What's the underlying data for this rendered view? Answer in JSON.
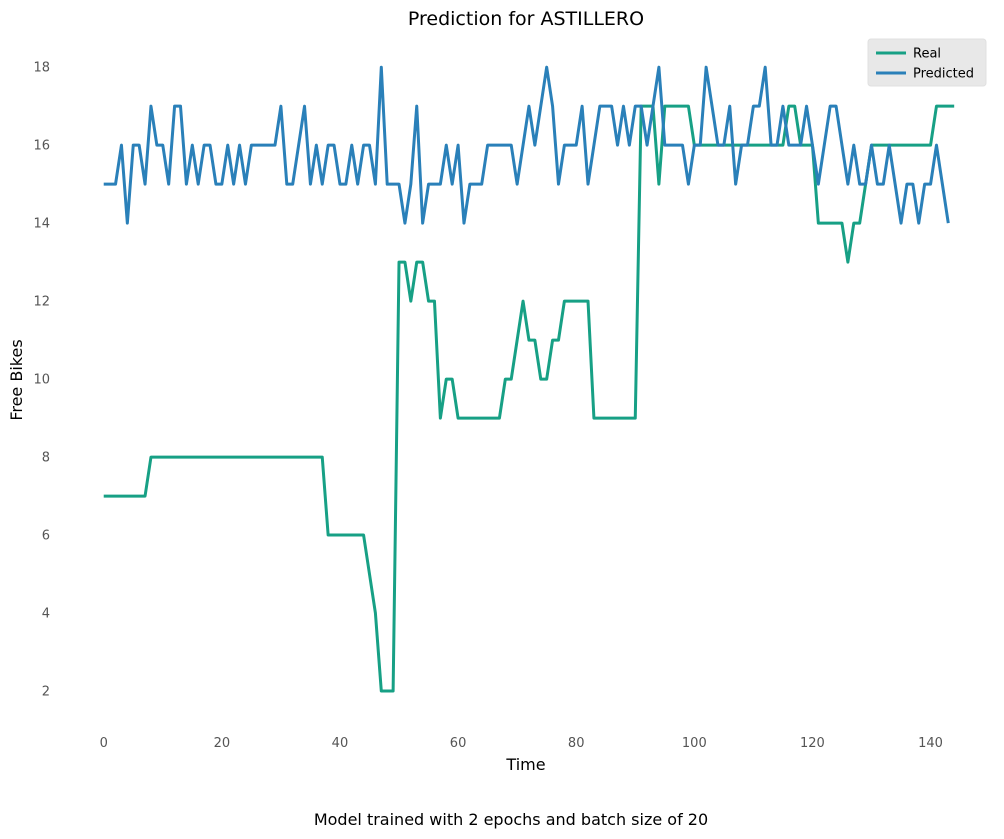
{
  "chart_data": {
    "type": "line",
    "title": "Prediction for ASTILLERO",
    "xlabel": "Time",
    "ylabel": "Free Bikes",
    "caption": "Model trained with 2 epochs and batch size of 20",
    "xlim": [
      -3,
      146
    ],
    "ylim": [
      1,
      18.8
    ],
    "xticks": [
      "0",
      "20",
      "40",
      "60",
      "80",
      "100",
      "120",
      "140"
    ],
    "yticks": [
      "2",
      "4",
      "6",
      "8",
      "10",
      "12",
      "14",
      "16",
      "18"
    ],
    "grid": false,
    "legend_position": "top-right",
    "series": [
      {
        "name": "Real",
        "color": "#17a085",
        "values": [
          7,
          7,
          7,
          7,
          7,
          7,
          7,
          7,
          8,
          8,
          8,
          8,
          8,
          8,
          8,
          8,
          8,
          8,
          8,
          8,
          8,
          8,
          8,
          8,
          8,
          8,
          8,
          8,
          8,
          8,
          8,
          8,
          8,
          8,
          8,
          8,
          8,
          8,
          6,
          6,
          6,
          6,
          6,
          6,
          6,
          5,
          4,
          2,
          2,
          2,
          13,
          13,
          12,
          13,
          13,
          12,
          12,
          9,
          10,
          10,
          9,
          9,
          9,
          9,
          9,
          9,
          9,
          9,
          10,
          10,
          11,
          12,
          11,
          11,
          10,
          10,
          11,
          11,
          12,
          12,
          12,
          12,
          12,
          9,
          9,
          9,
          9,
          9,
          9,
          9,
          9,
          17,
          17,
          17,
          15,
          17,
          17,
          17,
          17,
          17,
          16,
          16,
          16,
          16,
          16,
          16,
          16,
          16,
          16,
          16,
          16,
          16,
          16,
          16,
          16,
          16,
          17,
          17,
          16,
          16,
          16,
          14,
          14,
          14,
          14,
          14,
          13,
          14,
          14,
          15,
          16,
          16,
          16,
          16,
          16,
          16,
          16,
          16,
          16,
          16,
          16,
          17,
          17,
          17,
          17
        ]
      },
      {
        "name": "Predicted",
        "color": "#2a80b9",
        "values": [
          15,
          15,
          15,
          16,
          14,
          16,
          16,
          15,
          17,
          16,
          16,
          15,
          17,
          17,
          15,
          16,
          15,
          16,
          16,
          15,
          15,
          16,
          15,
          16,
          15,
          16,
          16,
          16,
          16,
          16,
          17,
          15,
          15,
          16,
          17,
          15,
          16,
          15,
          16,
          16,
          15,
          15,
          16,
          15,
          16,
          16,
          15,
          18,
          15,
          15,
          15,
          14,
          15,
          17,
          14,
          15,
          15,
          15,
          16,
          15,
          16,
          14,
          15,
          15,
          15,
          16,
          16,
          16,
          16,
          16,
          15,
          16,
          17,
          16,
          17,
          18,
          17,
          15,
          16,
          16,
          16,
          17,
          15,
          16,
          17,
          17,
          17,
          16,
          17,
          16,
          17,
          17,
          16,
          17,
          18,
          16,
          16,
          16,
          16,
          15,
          16,
          16,
          18,
          17,
          16,
          16,
          17,
          15,
          16,
          16,
          17,
          17,
          18,
          16,
          16,
          17,
          16,
          16,
          16,
          17,
          16,
          15,
          16,
          17,
          17,
          16,
          15,
          16,
          15,
          15,
          16,
          15,
          15,
          16,
          15,
          14,
          15,
          15,
          14,
          15,
          15,
          16,
          15,
          14
        ]
      }
    ]
  }
}
